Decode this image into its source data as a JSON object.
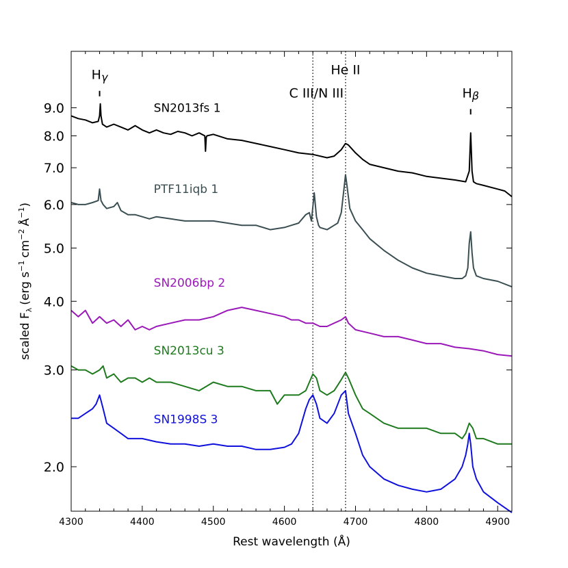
{
  "chart_data": {
    "type": "line",
    "title": "",
    "xlabel": "Rest wavelength (Å)",
    "ylabel": {
      "prefix": "scaled F",
      "subscript": "λ",
      "units": "(erg s",
      "unit_exp1": "−1",
      "unit_mid": "cm",
      "unit_exp2": "−2",
      "unit_ang": "Å",
      "unit_exp3": "−1",
      "close": ")"
    },
    "xlim": [
      4300,
      4920
    ],
    "ylim": [
      1.66,
      11.4
    ],
    "yscale": "log",
    "xticks": [
      4300,
      4400,
      4500,
      4600,
      4700,
      4800,
      4900
    ],
    "yticks": [
      2.0,
      3.0,
      4.0,
      5.0,
      6.0,
      7.0,
      8.0,
      9.0
    ],
    "yticklabels": [
      "2.0",
      "3.0",
      "4.0",
      "5.0",
      "6.0",
      "7.0",
      "8.0",
      "9.0"
    ],
    "vlines": [
      4640,
      4686
    ],
    "line_ids": [
      {
        "id": "hgamma",
        "text": "H",
        "greek": "γ",
        "x": 4340,
        "y": 10.15,
        "tick_y": 9.55
      },
      {
        "id": "heii",
        "text": "He II",
        "greek": "",
        "x": 4686,
        "y": 10.35,
        "tick_y": null
      },
      {
        "id": "ciii",
        "text": "C III/N III",
        "greek": "",
        "x": 4645,
        "y": 9.4,
        "tick_y": null
      },
      {
        "id": "hbeta",
        "text": "H",
        "greek": "β",
        "x": 4862,
        "y": 9.4,
        "tick_y": 8.85
      }
    ],
    "series": [
      {
        "name": "SN2013fs 1",
        "color": "#000000",
        "label_x": 4395,
        "label_y": 8.85,
        "x": [
          4300,
          4310,
          4320,
          4330,
          4338,
          4340,
          4341,
          4342,
          4344,
          4350,
          4360,
          4370,
          4380,
          4390,
          4400,
          4410,
          4420,
          4430,
          4440,
          4450,
          4460,
          4470,
          4480,
          4488,
          4489,
          4490,
          4491,
          4500,
          4520,
          4540,
          4560,
          4580,
          4600,
          4620,
          4640,
          4660,
          4670,
          4680,
          4686,
          4690,
          4700,
          4710,
          4720,
          4740,
          4760,
          4780,
          4800,
          4820,
          4840,
          4855,
          4860,
          4862,
          4864,
          4866,
          4870,
          4880,
          4900,
          4910,
          4920
        ],
        "y": [
          8.7,
          8.6,
          8.55,
          8.45,
          8.5,
          8.7,
          9.15,
          8.7,
          8.4,
          8.3,
          8.4,
          8.3,
          8.2,
          8.35,
          8.2,
          8.1,
          8.2,
          8.1,
          8.05,
          8.15,
          8.1,
          8.0,
          8.1,
          8.0,
          7.5,
          7.95,
          8.0,
          8.05,
          7.9,
          7.85,
          7.75,
          7.65,
          7.55,
          7.45,
          7.4,
          7.3,
          7.35,
          7.55,
          7.75,
          7.7,
          7.45,
          7.25,
          7.1,
          7.0,
          6.9,
          6.85,
          6.75,
          6.7,
          6.65,
          6.6,
          6.9,
          8.1,
          6.9,
          6.6,
          6.55,
          6.5,
          6.4,
          6.35,
          6.2
        ]
      },
      {
        "name": "PTF11iqb 1",
        "color": "#3a4e52",
        "label_x": 4395,
        "label_y": 6.3,
        "x": [
          4300,
          4310,
          4320,
          4330,
          4338,
          4340,
          4342,
          4345,
          4350,
          4360,
          4365,
          4370,
          4380,
          4390,
          4400,
          4410,
          4420,
          4440,
          4460,
          4480,
          4500,
          4520,
          4540,
          4560,
          4580,
          4600,
          4610,
          4620,
          4630,
          4635,
          4638,
          4642,
          4645,
          4648,
          4650,
          4660,
          4670,
          4675,
          4680,
          4684,
          4686,
          4688,
          4692,
          4700,
          4710,
          4720,
          4740,
          4760,
          4780,
          4800,
          4820,
          4840,
          4850,
          4855,
          4858,
          4860,
          4862,
          4864,
          4866,
          4870,
          4880,
          4900,
          4920
        ],
        "y": [
          6.05,
          6.0,
          6.0,
          6.05,
          6.1,
          6.4,
          6.1,
          6.0,
          5.9,
          5.95,
          6.05,
          5.85,
          5.75,
          5.75,
          5.7,
          5.65,
          5.7,
          5.65,
          5.6,
          5.6,
          5.6,
          5.55,
          5.5,
          5.5,
          5.4,
          5.45,
          5.5,
          5.55,
          5.75,
          5.8,
          5.6,
          6.3,
          5.7,
          5.5,
          5.45,
          5.4,
          5.5,
          5.55,
          5.8,
          6.45,
          6.8,
          6.5,
          5.9,
          5.6,
          5.4,
          5.2,
          4.95,
          4.75,
          4.6,
          4.5,
          4.45,
          4.4,
          4.4,
          4.45,
          4.6,
          5.1,
          5.35,
          4.9,
          4.6,
          4.45,
          4.4,
          4.35,
          4.25
        ]
      },
      {
        "name": "SN2006bp 2",
        "color": "#9a18b8",
        "label_x": 4395,
        "label_y": 4.25,
        "x": [
          4300,
          4310,
          4320,
          4330,
          4340,
          4350,
          4360,
          4370,
          4380,
          4390,
          4400,
          4410,
          4420,
          4440,
          4460,
          4480,
          4500,
          4520,
          4540,
          4560,
          4580,
          4600,
          4610,
          4620,
          4630,
          4640,
          4650,
          4660,
          4670,
          4680,
          4686,
          4690,
          4700,
          4720,
          4740,
          4760,
          4780,
          4800,
          4820,
          4840,
          4860,
          4880,
          4900,
          4920
        ],
        "y": [
          3.85,
          3.75,
          3.85,
          3.65,
          3.75,
          3.65,
          3.7,
          3.6,
          3.7,
          3.55,
          3.6,
          3.55,
          3.6,
          3.65,
          3.7,
          3.7,
          3.75,
          3.85,
          3.9,
          3.85,
          3.8,
          3.75,
          3.7,
          3.7,
          3.65,
          3.65,
          3.6,
          3.6,
          3.65,
          3.7,
          3.75,
          3.65,
          3.55,
          3.5,
          3.45,
          3.45,
          3.4,
          3.35,
          3.35,
          3.3,
          3.28,
          3.25,
          3.2,
          3.18
        ]
      },
      {
        "name": "SN2013cu 3",
        "color": "#1d7a1d",
        "label_x": 4395,
        "label_y": 3.2,
        "x": [
          4300,
          4310,
          4320,
          4330,
          4340,
          4345,
          4350,
          4360,
          4370,
          4380,
          4390,
          4400,
          4410,
          4420,
          4440,
          4460,
          4480,
          4500,
          4520,
          4540,
          4560,
          4580,
          4590,
          4600,
          4620,
          4630,
          4640,
          4645,
          4650,
          4660,
          4670,
          4680,
          4686,
          4690,
          4700,
          4710,
          4720,
          4740,
          4760,
          4780,
          4800,
          4820,
          4840,
          4850,
          4855,
          4860,
          4865,
          4870,
          4880,
          4900,
          4920
        ],
        "y": [
          3.05,
          3.0,
          3.0,
          2.95,
          3.0,
          3.05,
          2.9,
          2.95,
          2.85,
          2.9,
          2.9,
          2.85,
          2.9,
          2.85,
          2.85,
          2.8,
          2.75,
          2.85,
          2.8,
          2.8,
          2.75,
          2.75,
          2.6,
          2.7,
          2.7,
          2.75,
          2.95,
          2.9,
          2.75,
          2.7,
          2.75,
          2.88,
          2.97,
          2.9,
          2.7,
          2.55,
          2.5,
          2.4,
          2.35,
          2.35,
          2.35,
          2.3,
          2.3,
          2.25,
          2.3,
          2.4,
          2.35,
          2.25,
          2.25,
          2.2,
          2.2
        ]
      },
      {
        "name": "SN1998S 3",
        "color": "#1010dd",
        "label_x": 4395,
        "label_y": 2.4,
        "x": [
          4300,
          4310,
          4320,
          4330,
          4335,
          4340,
          4345,
          4350,
          4360,
          4370,
          4380,
          4400,
          4420,
          4440,
          4460,
          4480,
          4500,
          4520,
          4540,
          4560,
          4580,
          4600,
          4610,
          4620,
          4630,
          4635,
          4640,
          4645,
          4650,
          4660,
          4670,
          4680,
          4686,
          4690,
          4700,
          4710,
          4720,
          4740,
          4760,
          4780,
          4800,
          4820,
          4840,
          4850,
          4855,
          4858,
          4860,
          4862,
          4865,
          4870,
          4880,
          4900,
          4920
        ],
        "y": [
          2.45,
          2.45,
          2.5,
          2.55,
          2.6,
          2.7,
          2.55,
          2.4,
          2.35,
          2.3,
          2.25,
          2.25,
          2.22,
          2.2,
          2.2,
          2.18,
          2.2,
          2.18,
          2.18,
          2.15,
          2.15,
          2.17,
          2.2,
          2.3,
          2.55,
          2.65,
          2.7,
          2.6,
          2.45,
          2.4,
          2.5,
          2.7,
          2.75,
          2.5,
          2.3,
          2.1,
          2.0,
          1.9,
          1.85,
          1.82,
          1.8,
          1.82,
          1.9,
          2.0,
          2.1,
          2.2,
          2.3,
          2.2,
          2.0,
          1.9,
          1.8,
          1.72,
          1.65
        ]
      }
    ]
  }
}
